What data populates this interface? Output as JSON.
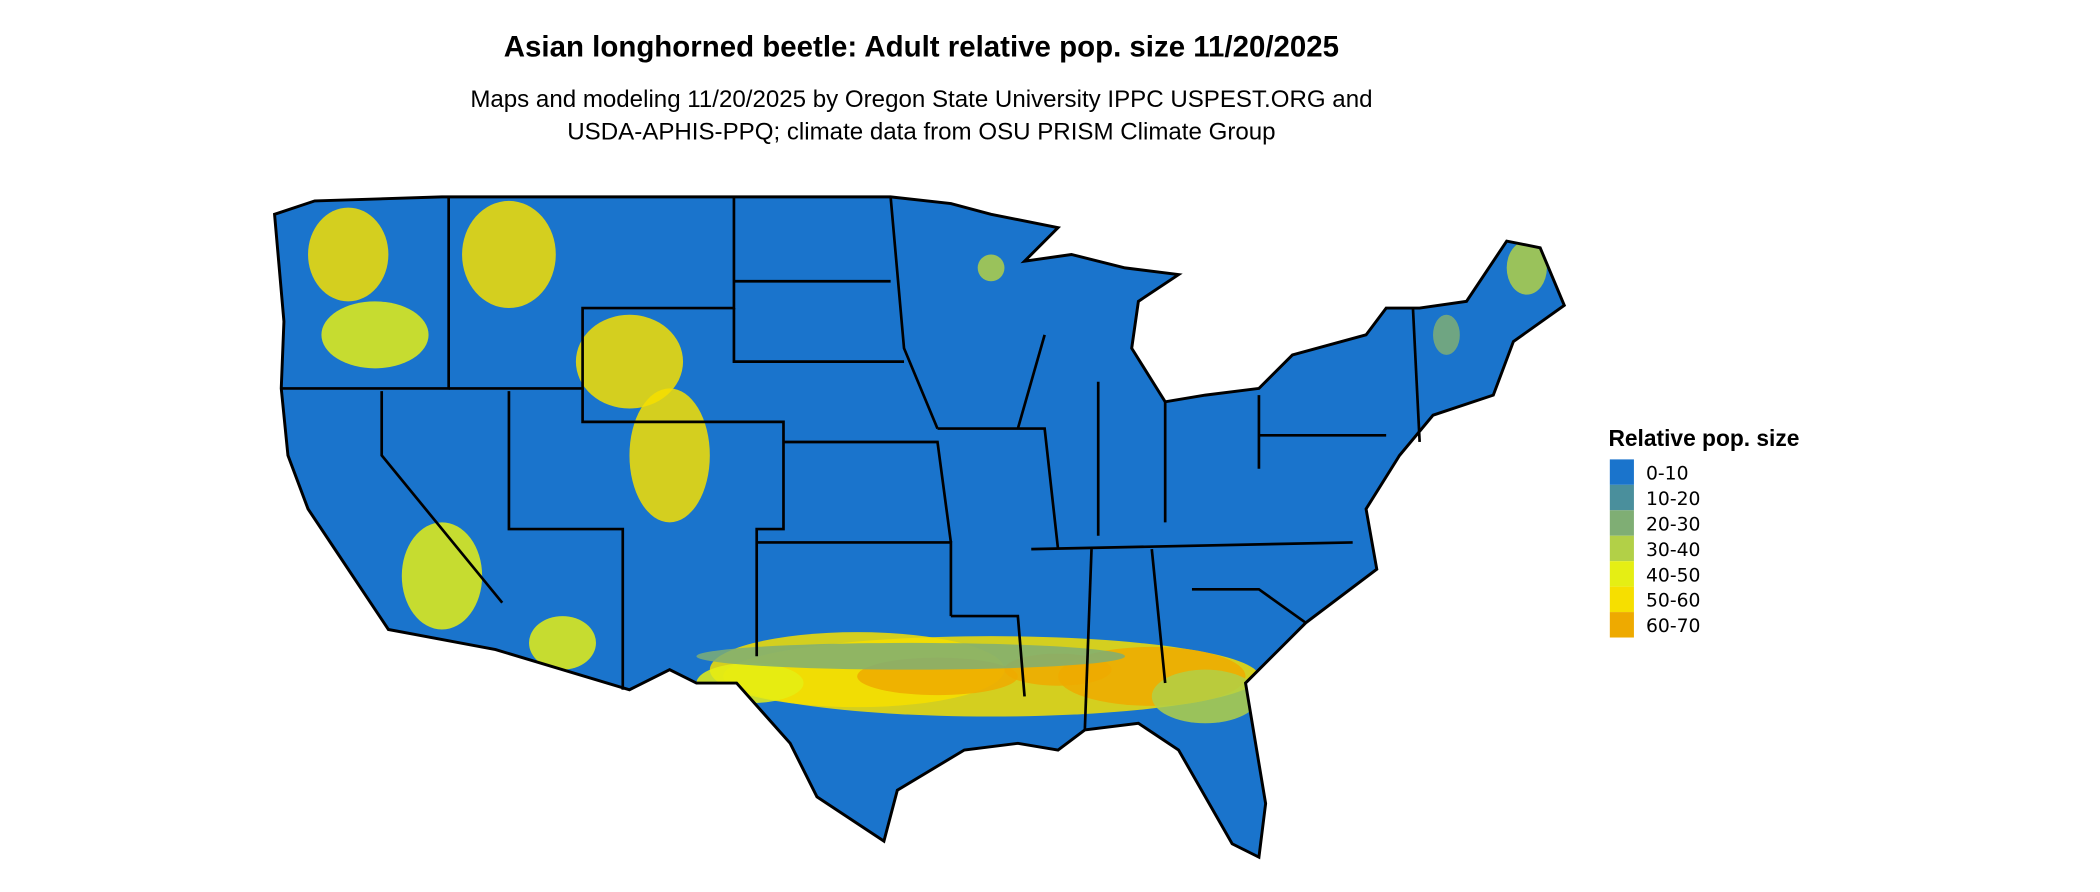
{
  "title": "Asian longhorned beetle: Adult relative pop. size 11/20/2025",
  "subtitle_line1": "Maps and modeling 11/20/2025 by Oregon State University IPPC USPEST.ORG and",
  "subtitle_line2": "USDA-APHIS-PPQ; climate data from OSU PRISM Climate Group",
  "legend": {
    "title": "Relative pop. size",
    "items": [
      {
        "label": "0-10",
        "color": "#1a74cc"
      },
      {
        "label": "10-20",
        "color": "#4a8f9c"
      },
      {
        "label": "20-30",
        "color": "#7fae74"
      },
      {
        "label": "30-40",
        "color": "#b2d047"
      },
      {
        "label": "40-50",
        "color": "#e5ee14"
      },
      {
        "label": "50-60",
        "color": "#f6df00"
      },
      {
        "label": "60-70",
        "color": "#eeaa00"
      }
    ]
  },
  "map": {
    "region": "Contiguous United States",
    "base_color": "#1a74cc",
    "border_color": "#000000"
  }
}
